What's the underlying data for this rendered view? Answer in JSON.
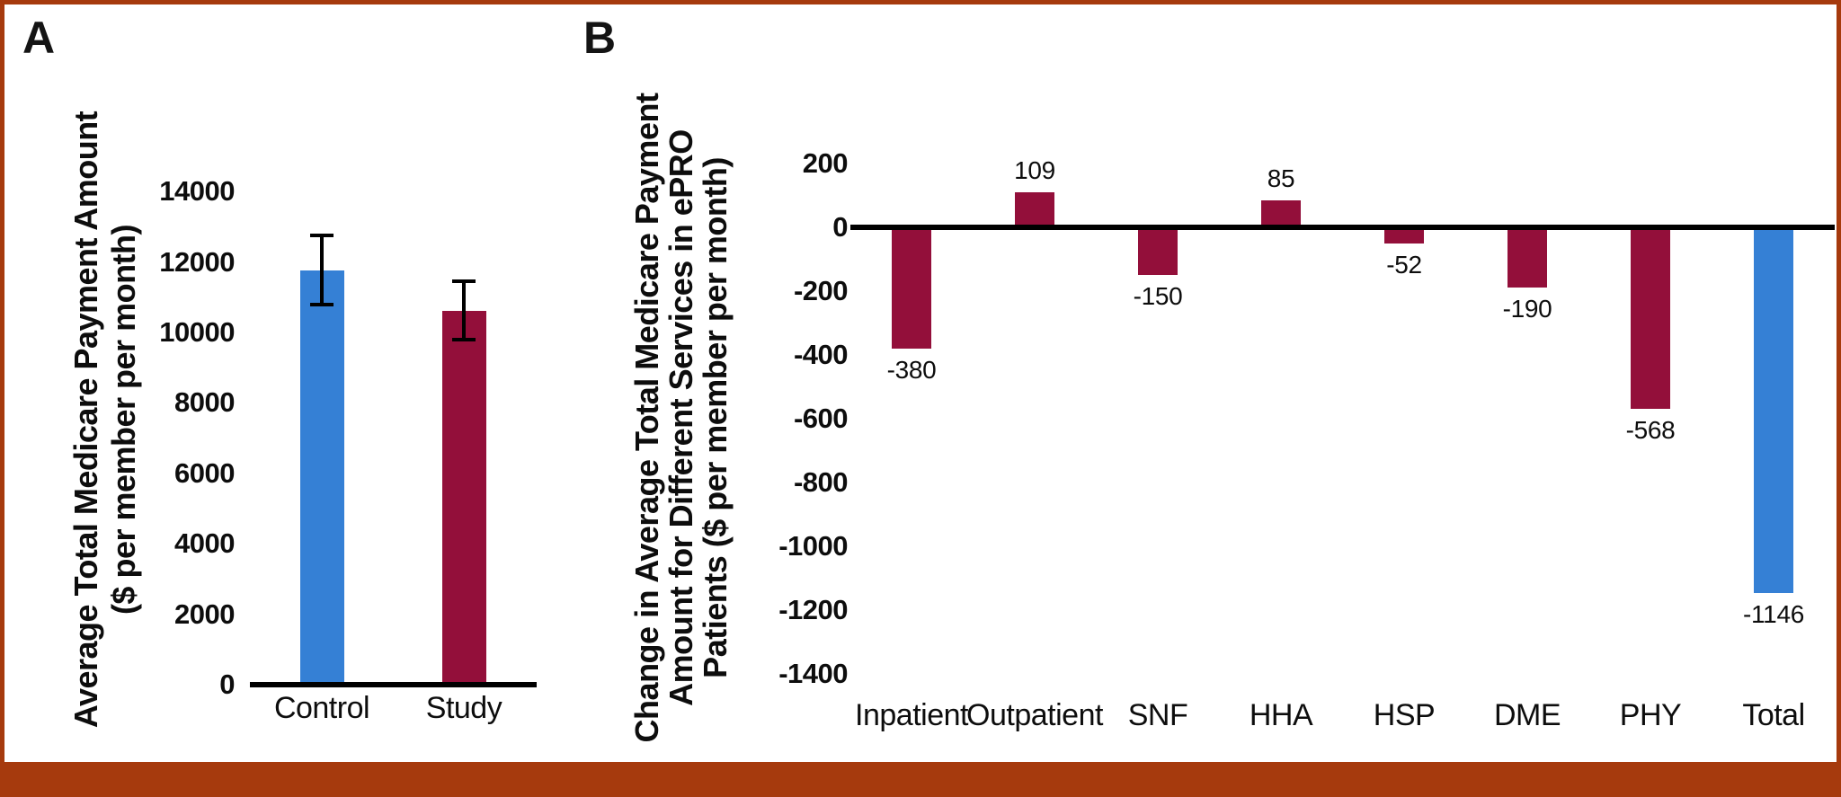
{
  "figure": {
    "background": "#FFFFFF",
    "border_color": "#A63A0D",
    "bottom_band_color": "#A63A0D"
  },
  "panels": {
    "a": {
      "letter": "A",
      "ylabel_lines": [
        "Average Total Medicare Payment Amount",
        "($ per member per month)"
      ]
    },
    "b": {
      "letter": "B",
      "ylabel_lines": [
        "Change in Average Total Medicare Payment",
        "Amount for Different Services in ePRO",
        "Patients ($ per member per month)"
      ]
    }
  },
  "colors": {
    "blue": "#3580D5",
    "crimson": "#930F3A",
    "axis": "#000000"
  },
  "chart_data": [
    {
      "type": "bar",
      "panel": "A",
      "ylabel": "Average Total Medicare Payment Amount ($ per member per month)",
      "categories": [
        "Control",
        "Study"
      ],
      "values": [
        11750,
        10600
      ],
      "error_low": [
        10800,
        9800
      ],
      "error_high": [
        12750,
        11450
      ],
      "bar_colors": [
        "#3580D5",
        "#930F3A"
      ],
      "ylim": [
        0,
        14000
      ],
      "yticks": [
        14000,
        12000,
        10000,
        8000,
        6000,
        4000,
        2000,
        0
      ],
      "grid": false,
      "legend_position": "none"
    },
    {
      "type": "bar",
      "panel": "B",
      "ylabel": "Change in Average Total Medicare Payment Amount for Different Services in ePRO Patients ($ per member per month)",
      "categories": [
        "Inpatient",
        "Outpatient",
        "SNF",
        "HHA",
        "HSP",
        "DME",
        "PHY",
        "Total"
      ],
      "values": [
        -380,
        109,
        -150,
        85,
        -52,
        -190,
        -568,
        -1146
      ],
      "data_labels": [
        "-380",
        "109",
        "-150",
        "85",
        "-52",
        "-190",
        "-568",
        "-1146"
      ],
      "bar_colors": [
        "#930F3A",
        "#930F3A",
        "#930F3A",
        "#930F3A",
        "#930F3A",
        "#930F3A",
        "#930F3A",
        "#3580D5"
      ],
      "ylim": [
        -1400,
        200
      ],
      "yticks": [
        200,
        0,
        -200,
        -400,
        -600,
        -800,
        -1000,
        -1200,
        -1400
      ],
      "grid": false,
      "legend_position": "none"
    }
  ]
}
